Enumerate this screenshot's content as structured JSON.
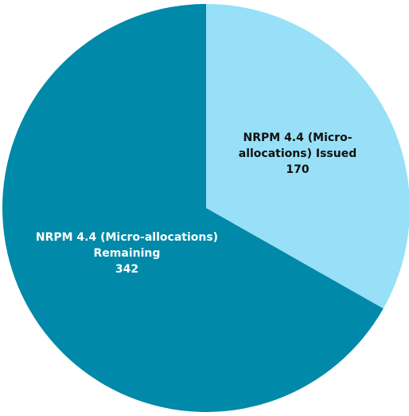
{
  "chart_data": {
    "type": "pie",
    "categories": [
      "NRPM 4.4 (Micro-allocations) Issued",
      "NRPM 4.4 (Micro-allocations) Remaining"
    ],
    "values": [
      170,
      342
    ],
    "colors": [
      "#97e0f7",
      "#0089a8"
    ],
    "label_colors": [
      "#111111",
      "#ffffff"
    ]
  }
}
